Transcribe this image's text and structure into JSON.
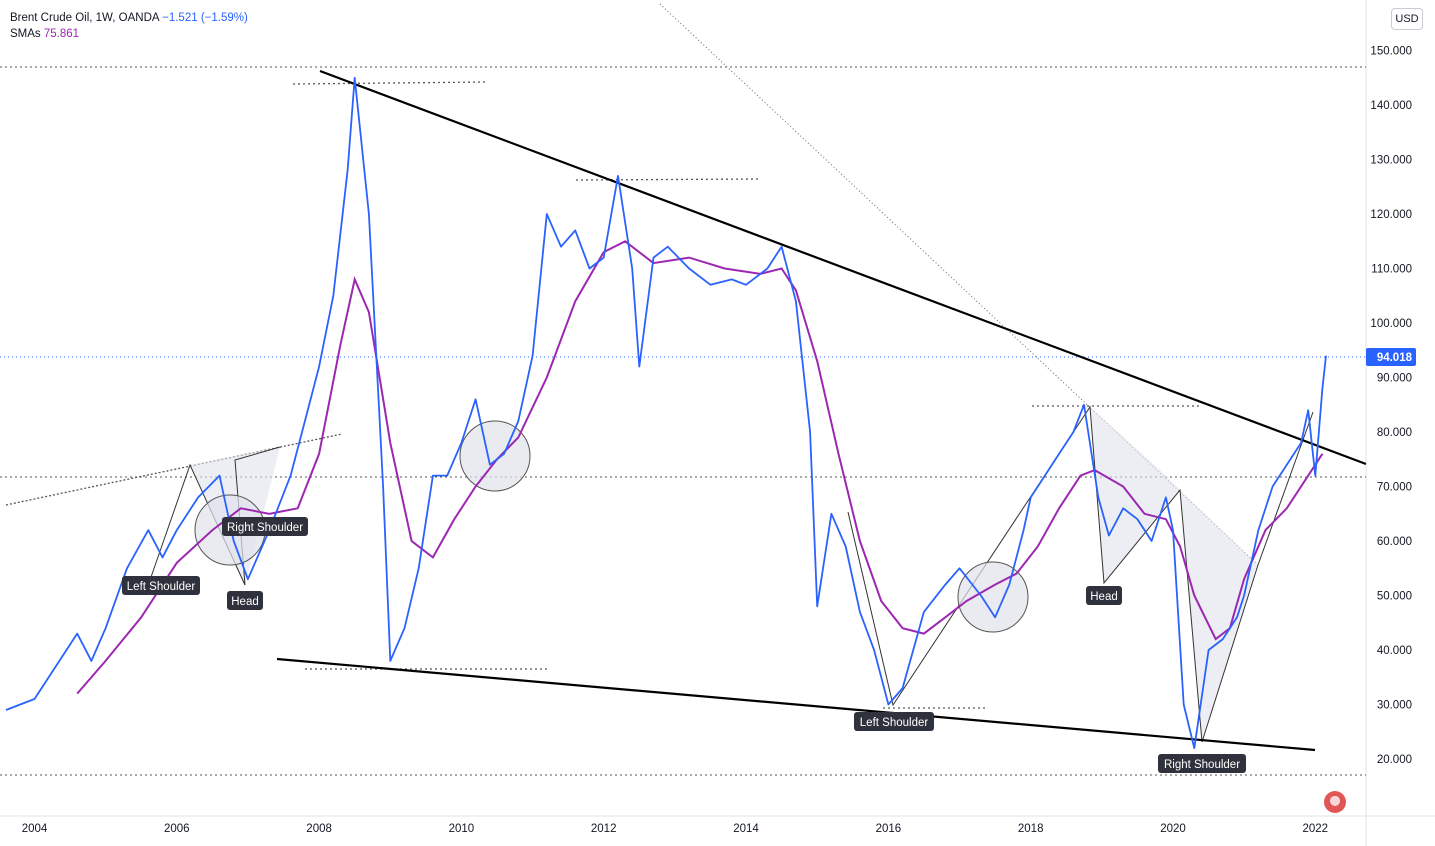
{
  "legend": {
    "symbol": "Brent Crude Oil, 1W, OANDA",
    "change": "−1.521 (−1.59%)",
    "sma_label": "SMAs",
    "sma_value": "75.861"
  },
  "currency_button": "USD",
  "price_label": "94.018",
  "colors": {
    "price": "#2962ff",
    "sma": "#9c27b0",
    "annotation": "#000000",
    "label_bg": "#2f323c"
  },
  "icons": [
    "us-flag-icon"
  ],
  "chart_data": {
    "type": "line",
    "title": "",
    "xlabel": "",
    "ylabel": "",
    "x_ticks": [
      "2004",
      "2006",
      "2008",
      "2010",
      "2012",
      "2014",
      "2016",
      "2018",
      "2020",
      "2022"
    ],
    "y_ticks": [
      "150.000",
      "140.000",
      "130.000",
      "120.000",
      "110.000",
      "100.000",
      "90.000",
      "80.000",
      "70.000",
      "60.000",
      "50.000",
      "40.000",
      "30.000",
      "20.000"
    ],
    "xlim": [
      2003.6,
      2022.6
    ],
    "ylim": [
      12,
      163
    ],
    "series": [
      {
        "name": "Brent Crude Oil",
        "x": [
          2003.6,
          2003.8,
          2004.0,
          2004.3,
          2004.6,
          2004.8,
          2005.0,
          2005.3,
          2005.6,
          2005.8,
          2006.0,
          2006.3,
          2006.6,
          2006.8,
          2007.0,
          2007.3,
          2007.6,
          2007.8,
          2008.0,
          2008.2,
          2008.4,
          2008.5,
          2008.7,
          2008.9,
          2009.0,
          2009.2,
          2009.4,
          2009.6,
          2009.8,
          2010.0,
          2010.2,
          2010.4,
          2010.6,
          2010.8,
          2011.0,
          2011.2,
          2011.4,
          2011.6,
          2011.8,
          2012.0,
          2012.2,
          2012.4,
          2012.5,
          2012.7,
          2012.9,
          2013.2,
          2013.5,
          2013.8,
          2014.0,
          2014.3,
          2014.5,
          2014.7,
          2014.9,
          2015.0,
          2015.2,
          2015.4,
          2015.6,
          2015.8,
          2016.0,
          2016.2,
          2016.5,
          2016.8,
          2017.0,
          2017.3,
          2017.5,
          2017.7,
          2017.9,
          2018.0,
          2018.2,
          2018.4,
          2018.6,
          2018.75,
          2018.95,
          2019.1,
          2019.3,
          2019.5,
          2019.7,
          2019.9,
          2020.0,
          2020.15,
          2020.3,
          2020.5,
          2020.7,
          2020.9,
          2021.0,
          2021.2,
          2021.4,
          2021.6,
          2021.8,
          2021.9,
          2022.0,
          2022.1,
          2022.15
        ],
        "values": [
          29,
          30,
          31,
          37,
          43,
          38,
          44,
          55,
          62,
          57,
          62,
          68,
          72,
          60,
          53,
          62,
          72,
          82,
          92,
          105,
          128,
          145,
          120,
          70,
          38,
          44,
          55,
          72,
          72,
          78,
          86,
          74,
          76,
          82,
          94,
          120,
          114,
          117,
          110,
          112,
          127,
          110,
          92,
          112,
          114,
          110,
          107,
          108,
          107,
          110,
          114,
          104,
          80,
          48,
          65,
          59,
          47,
          40,
          30,
          33,
          47,
          52,
          55,
          50,
          46,
          52,
          62,
          68,
          72,
          76,
          80,
          85,
          68,
          61,
          66,
          64,
          60,
          68,
          62,
          30,
          22,
          40,
          42,
          46,
          50,
          62,
          70,
          74,
          78,
          84,
          72,
          88,
          94
        ],
        "color": "#2962ff"
      },
      {
        "name": "SMA",
        "x": [
          2004.6,
          2005.0,
          2005.5,
          2006.0,
          2006.5,
          2006.9,
          2007.3,
          2007.7,
          2008.0,
          2008.3,
          2008.5,
          2008.7,
          2009.0,
          2009.3,
          2009.6,
          2009.9,
          2010.2,
          2010.5,
          2010.8,
          2011.2,
          2011.6,
          2012.0,
          2012.3,
          2012.7,
          2013.2,
          2013.7,
          2014.2,
          2014.5,
          2014.7,
          2015.0,
          2015.3,
          2015.6,
          2015.9,
          2016.2,
          2016.5,
          2016.8,
          2017.1,
          2017.5,
          2017.8,
          2018.1,
          2018.4,
          2018.7,
          2018.9,
          2019.3,
          2019.6,
          2019.9,
          2020.1,
          2020.3,
          2020.6,
          2020.8,
          2021.0,
          2021.3,
          2021.6,
          2021.9,
          2022.1
        ],
        "values": [
          32,
          38,
          46,
          56,
          62,
          66,
          65,
          66,
          76,
          96,
          108,
          102,
          78,
          60,
          57,
          64,
          70,
          75,
          79,
          90,
          104,
          113,
          115,
          111,
          112,
          110,
          109,
          110,
          106,
          93,
          76,
          60,
          49,
          44,
          43,
          46,
          49,
          52,
          54,
          59,
          66,
          72,
          73,
          70,
          65,
          64,
          59,
          50,
          42,
          44,
          53,
          62,
          66,
          72,
          76
        ],
        "color": "#9c27b0"
      }
    ],
    "annotations": [
      "Left Shoulder",
      "Head",
      "Right Shoulder",
      "Left Shoulder",
      "Head",
      "Right Shoulder"
    ],
    "grid": false
  }
}
